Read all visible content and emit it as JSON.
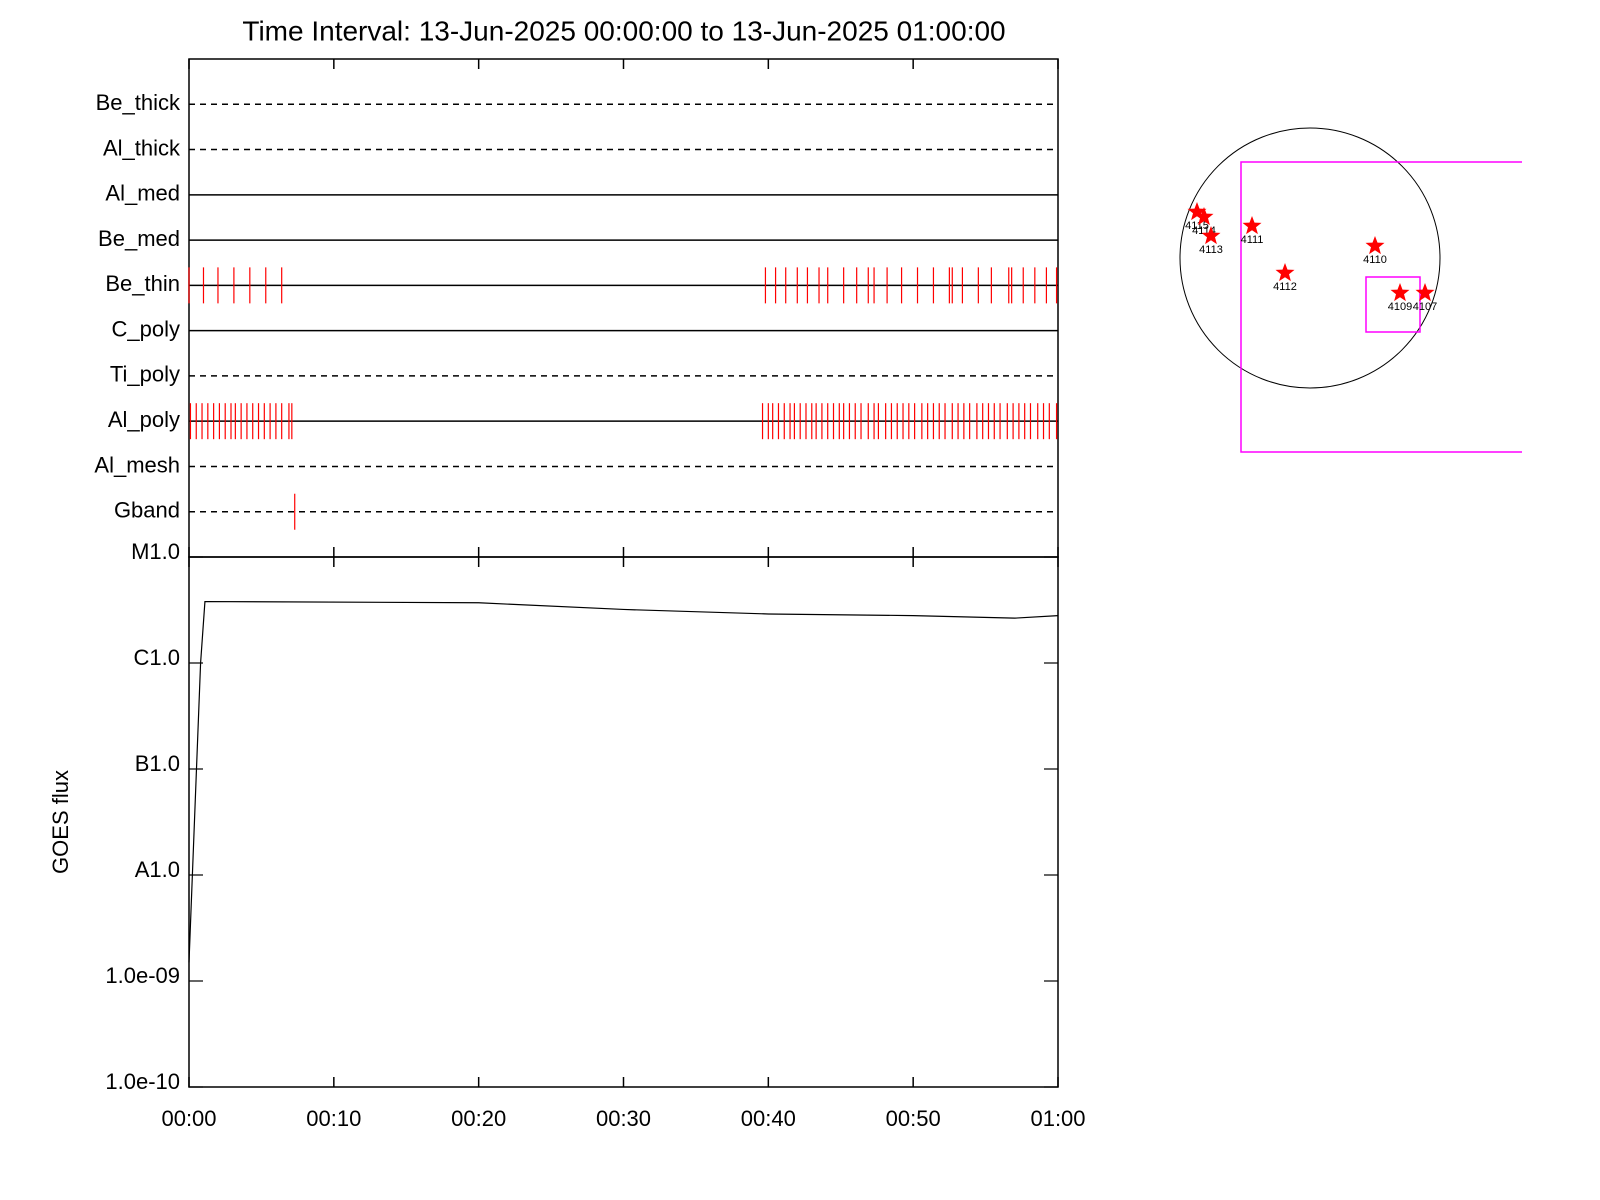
{
  "chart_data": [
    {
      "type": "events",
      "title": "Time Interval: 13-Jun-2025 00:00:00 to 13-Jun-2025 01:00:00",
      "categories": [
        "Be_thick",
        "Al_thick",
        "Al_med",
        "Be_med",
        "Be_thin",
        "C_poly",
        "Ti_poly",
        "Al_poly",
        "Al_mesh",
        "Gband"
      ],
      "linestyles": [
        "dashed",
        "dashed",
        "solid",
        "solid",
        "solid",
        "solid",
        "dashed",
        "solid",
        "dashed",
        "dashed"
      ],
      "color": "#ff0000",
      "xlim": [
        0,
        60
      ],
      "events": [
        [],
        [],
        [],
        [],
        [
          0,
          1,
          2,
          3.1,
          4.2,
          5.3,
          6.4,
          39.8,
          40.5,
          41.2,
          42,
          42.7,
          43.5,
          44.1,
          45.2,
          46.1,
          46.9,
          47.3,
          48.2,
          49.2,
          50.3,
          51.4,
          52.5,
          52.7,
          53.4,
          54.5,
          55.4,
          56.6,
          56.8,
          57.6,
          58.4,
          59.2,
          59.9
        ],
        [],
        [],
        [
          0.1,
          0.5,
          0.9,
          1.3,
          1.7,
          2.1,
          2.5,
          2.9,
          3.2,
          3.6,
          4,
          4.4,
          4.8,
          5.2,
          5.6,
          6,
          6.4,
          6.9,
          7.1,
          39.6,
          40,
          40.3,
          40.7,
          41.1,
          41.5,
          41.8,
          42.2,
          42.6,
          43,
          43.3,
          43.7,
          44.1,
          44.5,
          44.9,
          45.2,
          45.6,
          46,
          46.4,
          46.9,
          47.3,
          47.6,
          48.1,
          48.5,
          48.9,
          49.3,
          49.7,
          50.1,
          50.6,
          51,
          51.4,
          51.8,
          52.2,
          52.7,
          53.1,
          53.5,
          53.9,
          54.4,
          54.8,
          55.2,
          55.6,
          56,
          56.5,
          56.9,
          57.3,
          57.7,
          58.1,
          58.6,
          59,
          59.4,
          59.9
        ],
        [],
        [
          7.3
        ]
      ]
    },
    {
      "type": "line",
      "ylabel": "GOES flux",
      "log": true,
      "color": "#000000",
      "x": [
        0,
        0.8,
        1.1,
        20,
        30,
        40,
        50,
        57,
        60
      ],
      "values": [
        1.5e-09,
        1e-06,
        3.8e-06,
        3.7e-06,
        3.2e-06,
        2.9e-06,
        2.8e-06,
        2.65e-06,
        2.8e-06
      ],
      "xlim": [
        0,
        60
      ],
      "xticks": [
        {
          "value": 0,
          "label": "00:00"
        },
        {
          "value": 10,
          "label": "00:10"
        },
        {
          "value": 20,
          "label": "00:20"
        },
        {
          "value": 30,
          "label": "00:30"
        },
        {
          "value": 40,
          "label": "00:40"
        },
        {
          "value": 50,
          "label": "00:50"
        },
        {
          "value": 60,
          "label": "01:00"
        }
      ],
      "ylim": [
        1e-10,
        1e-05
      ],
      "yticks": [
        {
          "value": 1e-10,
          "label": "1.0e-10"
        },
        {
          "value": 1e-09,
          "label": "1.0e-09"
        },
        {
          "value": 1e-08,
          "label": "A1.0"
        },
        {
          "value": 1e-07,
          "label": "B1.0"
        },
        {
          "value": 1e-06,
          "label": "C1.0"
        },
        {
          "value": 1e-05,
          "label": "M1.0"
        }
      ]
    }
  ],
  "map": {
    "regions": [
      "4115",
      "4114",
      "4113",
      "4111",
      "4110",
      "4112",
      "4109",
      "4107"
    ]
  }
}
